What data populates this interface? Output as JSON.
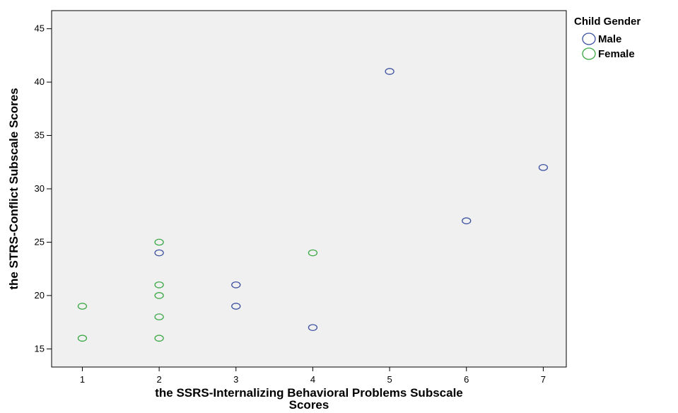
{
  "chart_data": {
    "type": "scatter",
    "title": "",
    "xlabel": "the SSRS-Internalizing Behavioral Problems Subscale Scores",
    "ylabel": "the STRS-Conflict Subscale Scores",
    "xlim": [
      0.6,
      7.3
    ],
    "ylim": [
      13.3,
      46.7
    ],
    "x_ticks": [
      1,
      2,
      3,
      4,
      5,
      6,
      7
    ],
    "y_ticks": [
      15,
      20,
      25,
      30,
      35,
      40,
      45
    ],
    "grid": false,
    "plot_background": "#f0f0f0",
    "legend": {
      "title": "Child Gender",
      "placement": "right-top-outside"
    },
    "series": [
      {
        "name": "Male",
        "color": "#3a4fa0",
        "marker": "open-circle",
        "points": [
          {
            "x": 2,
            "y": 24
          },
          {
            "x": 3,
            "y": 21
          },
          {
            "x": 3,
            "y": 19
          },
          {
            "x": 4,
            "y": 17
          },
          {
            "x": 5,
            "y": 41
          },
          {
            "x": 6,
            "y": 27
          },
          {
            "x": 7,
            "y": 32
          }
        ]
      },
      {
        "name": "Female",
        "color": "#3aa845",
        "marker": "open-circle",
        "points": [
          {
            "x": 1,
            "y": 19
          },
          {
            "x": 1,
            "y": 16
          },
          {
            "x": 2,
            "y": 25
          },
          {
            "x": 2,
            "y": 21
          },
          {
            "x": 2,
            "y": 20
          },
          {
            "x": 2,
            "y": 18
          },
          {
            "x": 2,
            "y": 16
          },
          {
            "x": 4,
            "y": 24
          }
        ]
      }
    ]
  }
}
